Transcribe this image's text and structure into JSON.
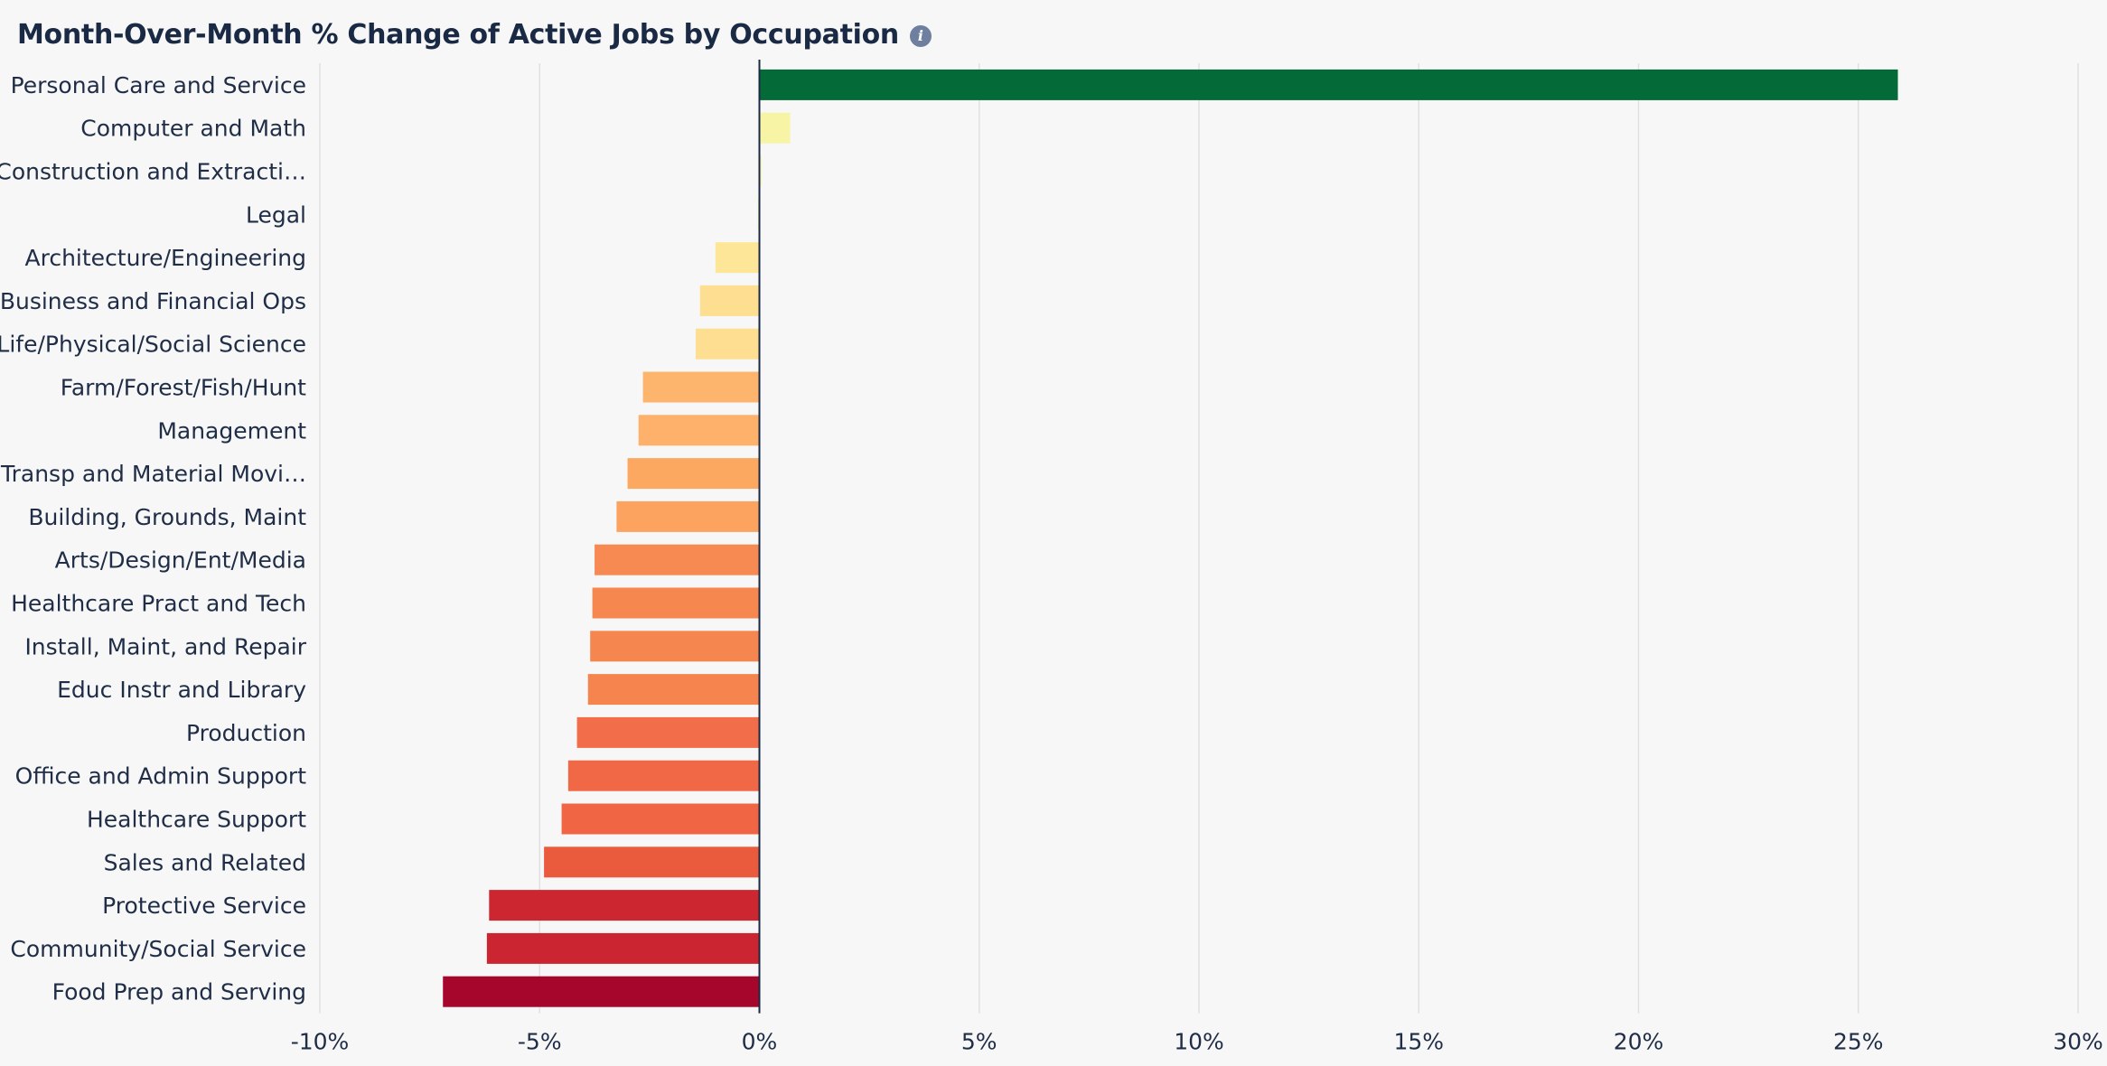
{
  "header": {
    "title": "Month-Over-Month % Change of Active Jobs by Occupation",
    "info_icon": "info-icon"
  },
  "chart_data": {
    "type": "bar",
    "orientation": "horizontal",
    "title": "Month-Over-Month % Change of Active Jobs by Occupation",
    "xlabel": "",
    "ylabel": "",
    "xlim": [
      -10,
      30
    ],
    "x_ticks": [
      -10,
      -5,
      0,
      5,
      10,
      15,
      20,
      25,
      30
    ],
    "x_tick_labels": [
      "-10%",
      "-5%",
      "0%",
      "5%",
      "10%",
      "15%",
      "20%",
      "25%",
      "30%"
    ],
    "grid": "vertical",
    "categories": [
      "Personal Care and Service",
      "Computer and Math",
      "Construction and Extracti…",
      "Legal",
      "Architecture/Engineering",
      "Business and Financial Ops",
      "Life/Physical/Social Science",
      "Farm/Forest/Fish/Hunt",
      "Management",
      "Transp and Material Movi…",
      "Building, Grounds, Maint",
      "Arts/Design/Ent/Media",
      "Healthcare Pract and Tech",
      "Install, Maint, and Repair",
      "Educ Instr and Library",
      "Production",
      "Office and Admin Support",
      "Healthcare Support",
      "Sales and Related",
      "Protective Service",
      "Community/Social Service",
      "Food Prep and Serving"
    ],
    "values": [
      25.9,
      0.7,
      0.05,
      -0.03,
      -1.0,
      -1.35,
      -1.45,
      -2.65,
      -2.75,
      -3.0,
      -3.25,
      -3.75,
      -3.8,
      -3.85,
      -3.9,
      -4.15,
      -4.35,
      -4.5,
      -4.9,
      -6.15,
      -6.2,
      -7.2
    ],
    "colors": [
      "#046b38",
      "#f7f4a6",
      "#fbf4b3",
      "#f4f2a5",
      "#fee699",
      "#fede91",
      "#fede91",
      "#fdb56d",
      "#fdb16a",
      "#fca860",
      "#fca35f",
      "#f68a52",
      "#f5874f",
      "#f58650",
      "#f5844f",
      "#f26e4a",
      "#f16847",
      "#f06644",
      "#ea5b3d",
      "#cc2730",
      "#cb2531",
      "#a6062c"
    ]
  }
}
